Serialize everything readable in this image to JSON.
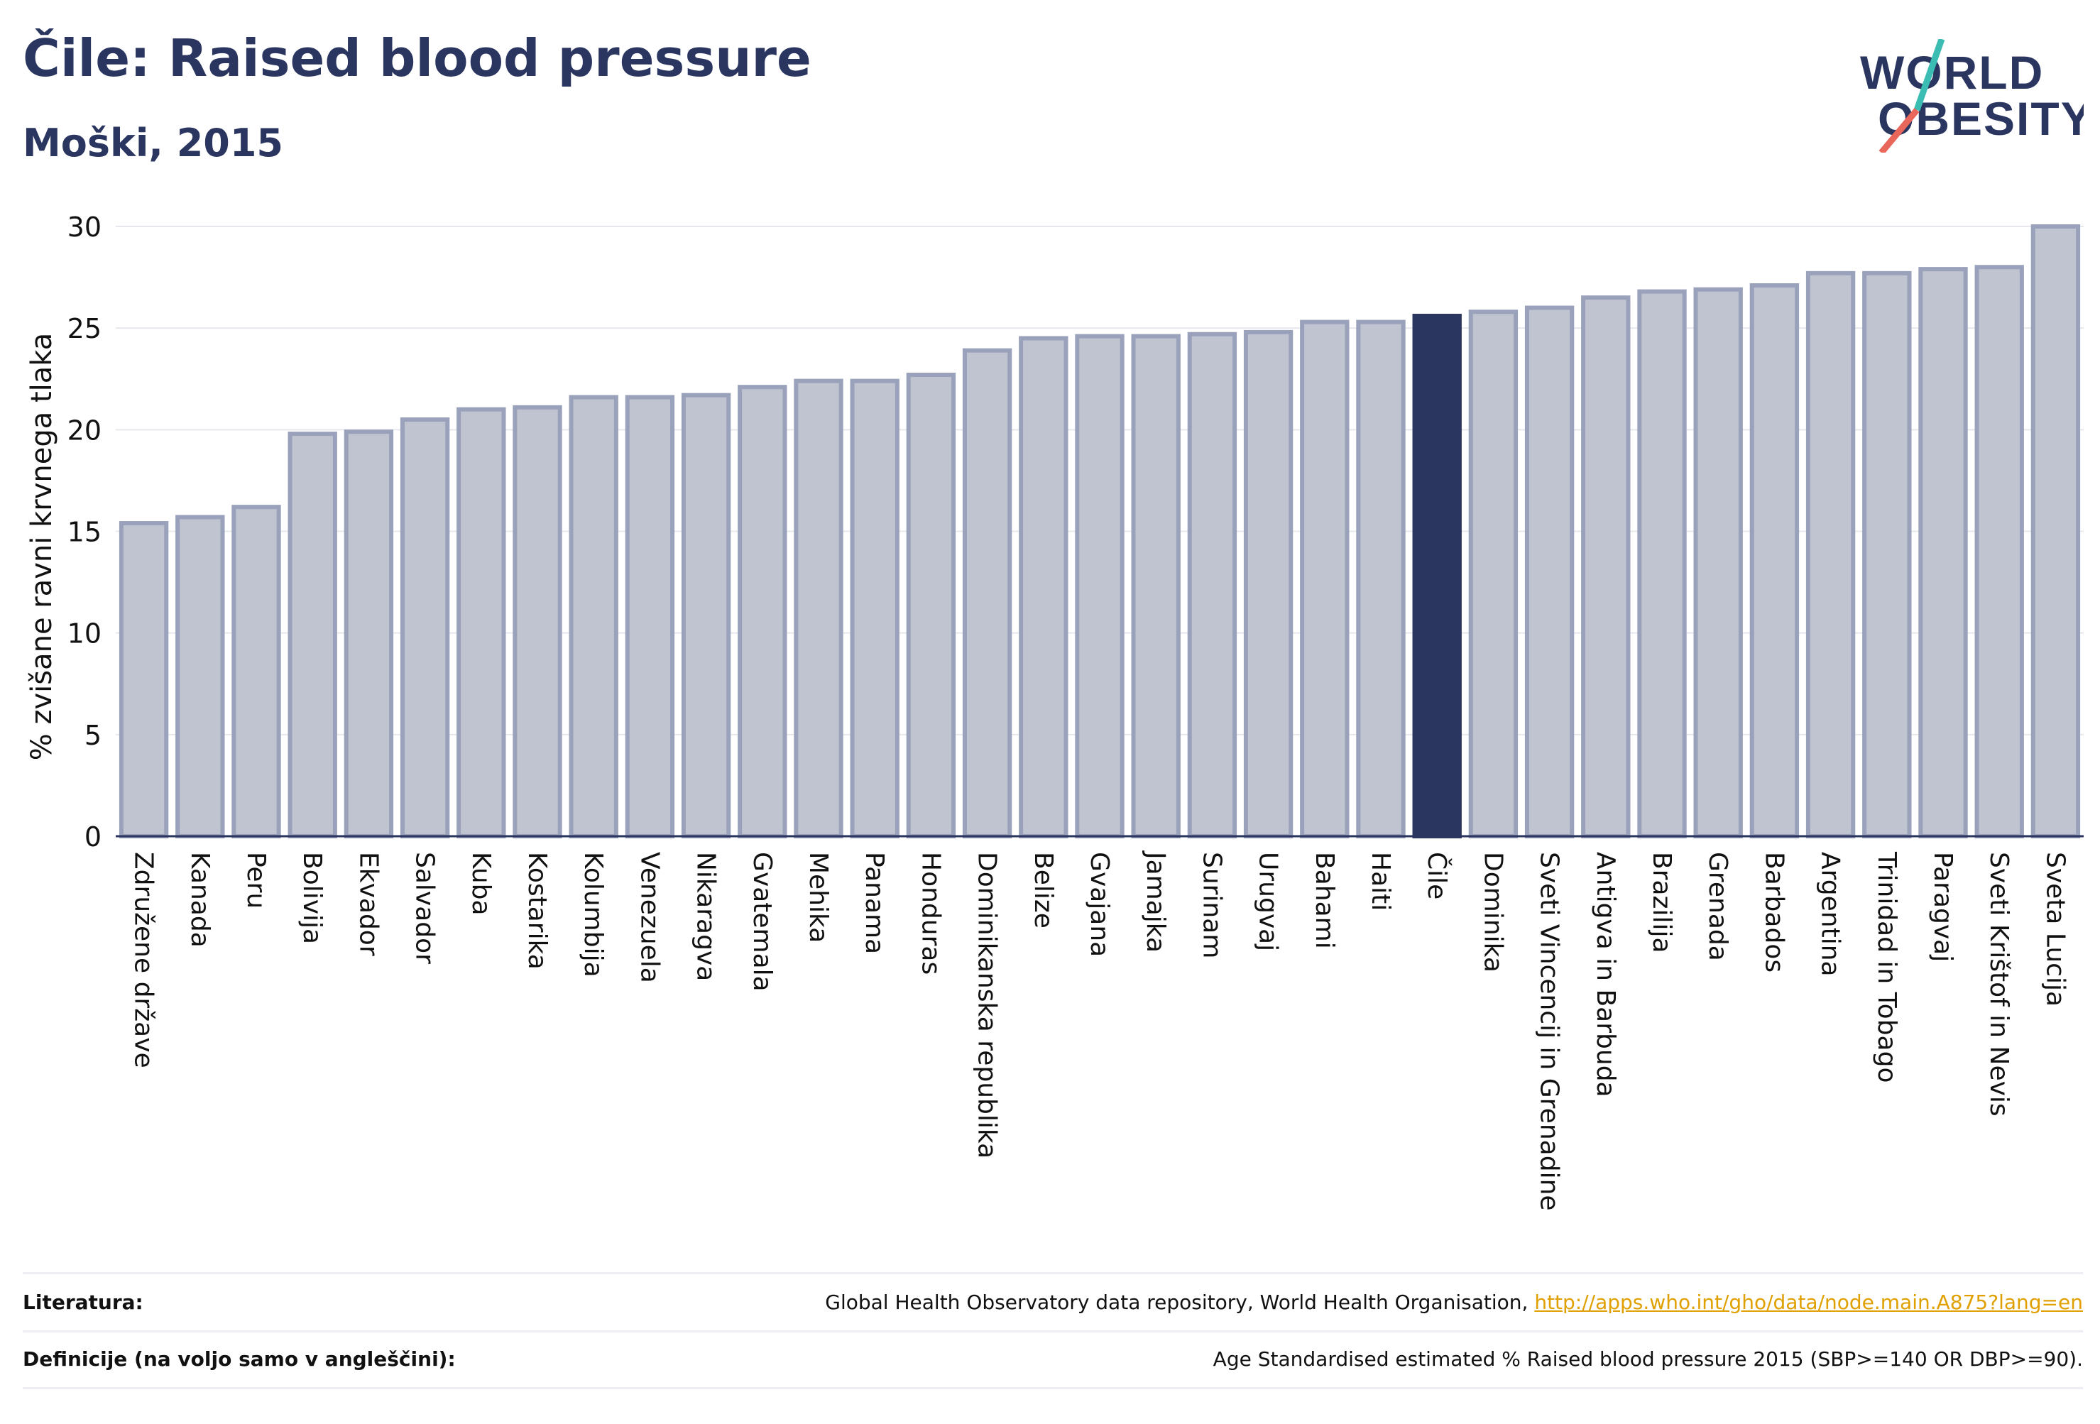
{
  "header": {
    "title": "Čile: Raised blood pressure",
    "subtitle": "Moški, 2015",
    "logo_line1": "WORLD",
    "logo_line2": "OBESITY"
  },
  "colors": {
    "highlight": "#2a3560",
    "bar_fill": "#c0c4d1",
    "bar_stroke": "#9aa1ba",
    "logo_slash_teal": "#3cbdb3",
    "logo_slash_red": "#e8675a",
    "link": "#e0a000"
  },
  "chart_data": {
    "type": "bar",
    "title": "Čile: Raised blood pressure",
    "subtitle": "Moški, 2015",
    "xlabel": "",
    "ylabel": "% zvišane ravni krvnega tlaka",
    "ylim": [
      0,
      30
    ],
    "yticks": [
      0,
      5,
      10,
      15,
      20,
      25,
      30
    ],
    "grid": true,
    "highlight_category": "Čile",
    "categories": [
      "Združene države",
      "Kanada",
      "Peru",
      "Bolivija",
      "Ekvador",
      "Salvador",
      "Kuba",
      "Kostarika",
      "Kolumbija",
      "Venezuela",
      "Nikaragva",
      "Gvatemala",
      "Mehika",
      "Panama",
      "Honduras",
      "Dominikanska republika",
      "Belize",
      "Gvajana",
      "Jamajka",
      "Surinam",
      "Urugvaj",
      "Bahami",
      "Haiti",
      "Čile",
      "Dominika",
      "Sveti Vincencij in Grenadine",
      "Antigva in Barbuda",
      "Brazilija",
      "Grenada",
      "Barbados",
      "Argentina",
      "Trinidad in Tobago",
      "Paragvaj",
      "Sveti Krištof in Nevis",
      "Sveta Lucija"
    ],
    "values": [
      15.4,
      15.7,
      16.2,
      19.8,
      19.9,
      20.5,
      21.0,
      21.1,
      21.6,
      21.6,
      21.7,
      22.1,
      22.4,
      22.4,
      22.7,
      23.9,
      24.5,
      24.6,
      24.6,
      24.7,
      24.8,
      25.3,
      25.3,
      25.6,
      25.8,
      26.0,
      26.5,
      26.8,
      26.9,
      27.1,
      27.7,
      27.7,
      27.9,
      28.0,
      30.0
    ]
  },
  "footer": {
    "sources_label": "Literatura:",
    "sources_text": "Global Health Observatory data repository, World Health Organisation, ",
    "sources_link": "http://apps.who.int/gho/data/node.main.A875?lang=en",
    "definitions_label": "Definicije (na voljo samo v angleščini):",
    "definitions_text": "Age Standardised estimated % Raised blood pressure 2015 (SBP>=140 OR DBP>=90)."
  }
}
